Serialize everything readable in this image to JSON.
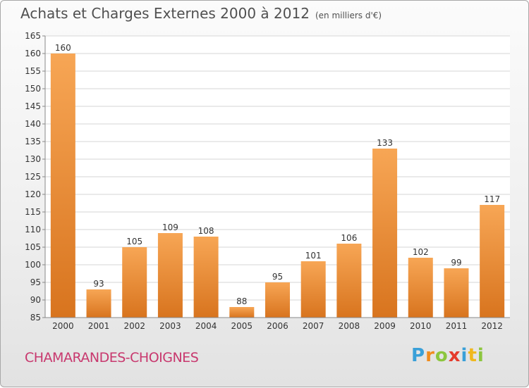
{
  "title": {
    "main": "Achats et Charges Externes 2000 à 2012",
    "unit": "(en milliers d'€)"
  },
  "town": "CHAMARANDES-CHOIGNES",
  "logo": {
    "letters": [
      "P",
      "r",
      "o",
      "x",
      "i",
      "t",
      "i"
    ],
    "colors": [
      "#3aa0d8",
      "#f08c1e",
      "#8cc63e",
      "#e53b2c",
      "#3aa0d8",
      "#f0b81e",
      "#8cc63e"
    ]
  },
  "colors": {
    "bar_light": "#f7a655",
    "bar_dark": "#d8741e",
    "grid": "#d6d6d6",
    "axis_text": "#333333"
  },
  "chart_data": {
    "type": "bar",
    "title": "Achats et Charges Externes 2000 à 2012",
    "xlabel": "",
    "ylabel": "",
    "ylim": [
      85,
      165
    ],
    "yticks": [
      85,
      90,
      95,
      100,
      105,
      110,
      115,
      120,
      125,
      130,
      135,
      140,
      145,
      150,
      155,
      160,
      165
    ],
    "grid": true,
    "categories": [
      "2000",
      "2001",
      "2002",
      "2003",
      "2004",
      "2005",
      "2006",
      "2007",
      "2008",
      "2009",
      "2010",
      "2011",
      "2012"
    ],
    "values": [
      160,
      93,
      105,
      109,
      108,
      88,
      95,
      101,
      106,
      133,
      102,
      99,
      117
    ]
  }
}
